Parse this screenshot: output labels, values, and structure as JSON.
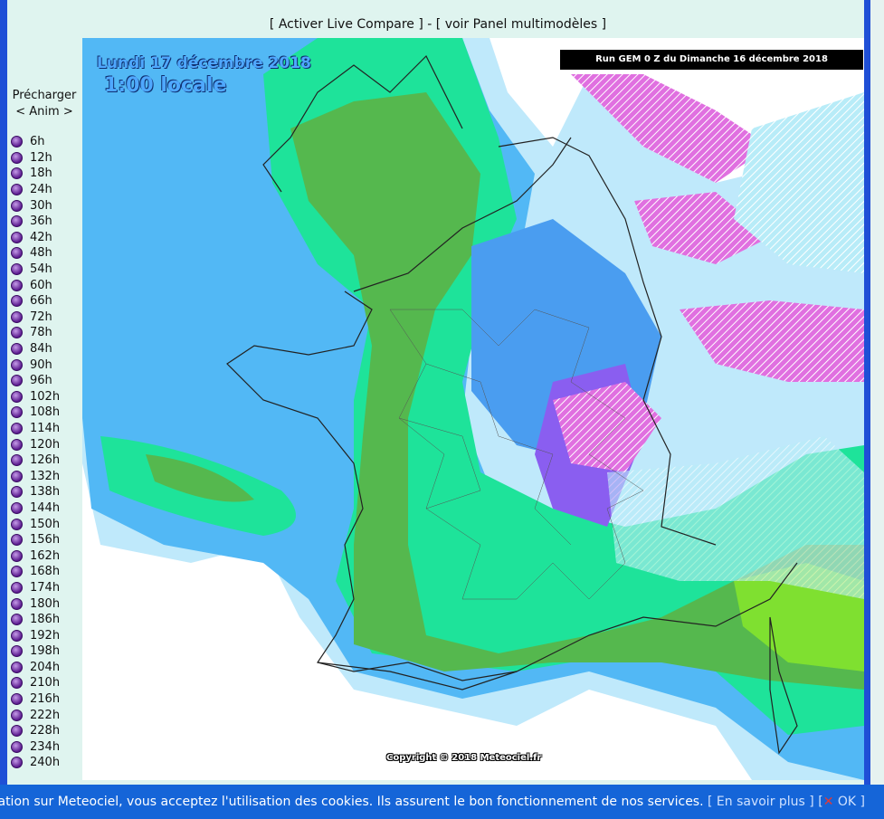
{
  "header": {
    "live_compare": "[ Activer Live Compare ]",
    "separator": "-",
    "panel": "[ voir Panel multimodèles ]"
  },
  "sidebar": {
    "preload": "Précharger",
    "anim": "< Anim >",
    "hours": [
      "6h",
      "12h",
      "18h",
      "24h",
      "30h",
      "36h",
      "42h",
      "48h",
      "54h",
      "60h",
      "66h",
      "72h",
      "78h",
      "84h",
      "90h",
      "96h",
      "102h",
      "108h",
      "114h",
      "120h",
      "126h",
      "132h",
      "138h",
      "144h",
      "150h",
      "156h",
      "162h",
      "168h",
      "174h",
      "180h",
      "186h",
      "192h",
      "198h",
      "204h",
      "210h",
      "216h",
      "222h",
      "228h",
      "234h",
      "240h"
    ]
  },
  "map": {
    "date": "Lundi 17 décembre 2018",
    "time": "1:00 locale",
    "run": "Run GEM 0 Z du Dimanche 16 décembre 2018",
    "copyright": "Copyright © 2018 Meteociel.fr"
  },
  "cookie": {
    "message": "vigation sur Meteociel, vous acceptez l'utilisation des cookies. Ils assurent le bon fonctionnement de nos services.",
    "more": "[ En savoir plus ]",
    "ok_open": "[",
    "ok_icon": "✕",
    "ok": "OK ]"
  }
}
